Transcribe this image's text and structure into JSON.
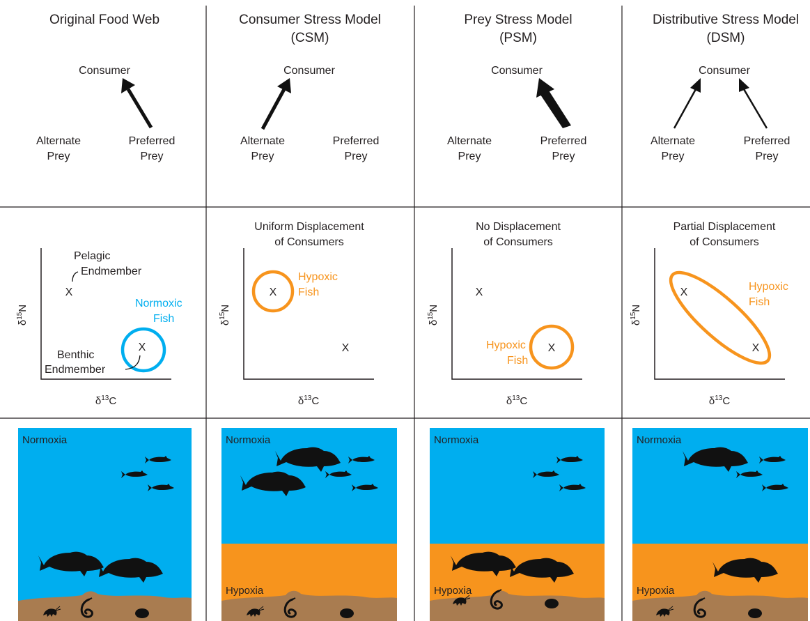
{
  "colors": {
    "text": "#231f20",
    "water": "#00aeef",
    "hypoxic_layer": "#f7941d",
    "sediment": "#a97c50",
    "normoxic_ring": "#00aeef",
    "hypoxic_ring": "#f7941d"
  },
  "columns": [
    {
      "title_line1": "Original Food Web",
      "title_line2": "",
      "web": {
        "consumer": "Consumer",
        "alternate_l1": "Alternate",
        "alternate_l2": "Prey",
        "preferred_l1": "Preferred",
        "preferred_l2": "Prey"
      },
      "isotope": {
        "subtitle_line1": "",
        "subtitle_line2": "",
        "x_label": "δ13C",
        "y_label": "δ15N",
        "pelagic_l1": "Pelagic",
        "pelagic_l2": "Endmember",
        "benthic_l1": "Benthic",
        "benthic_l2": "Endmember",
        "fish_l1": "Normoxic",
        "fish_l2": "Fish",
        "marker": "X"
      },
      "scene": {
        "normoxia": "Normoxia",
        "hypoxia": ""
      }
    },
    {
      "title_line1": "Consumer Stress Model",
      "title_line2": "(CSM)",
      "web": {
        "consumer": "Consumer",
        "alternate_l1": "Alternate",
        "alternate_l2": "Prey",
        "preferred_l1": "Preferred",
        "preferred_l2": "Prey"
      },
      "isotope": {
        "subtitle_line1": "Uniform Displacement",
        "subtitle_line2": "of Consumers",
        "x_label": "δ13C",
        "y_label": "δ15N",
        "fish_l1": "Hypoxic",
        "fish_l2": "Fish",
        "marker": "X"
      },
      "scene": {
        "normoxia": "Normoxia",
        "hypoxia": "Hypoxia"
      }
    },
    {
      "title_line1": "Prey Stress Model",
      "title_line2": "(PSM)",
      "web": {
        "consumer": "Consumer",
        "alternate_l1": "Alternate",
        "alternate_l2": "Prey",
        "preferred_l1": "Preferred",
        "preferred_l2": "Prey"
      },
      "isotope": {
        "subtitle_line1": "No Displacement",
        "subtitle_line2": "of Consumers",
        "x_label": "δ13C",
        "y_label": "δ15N",
        "fish_l1": "Hypoxic",
        "fish_l2": "Fish",
        "marker": "X"
      },
      "scene": {
        "normoxia": "Normoxia",
        "hypoxia": "Hypoxia"
      }
    },
    {
      "title_line1": "Distributive Stress Model",
      "title_line2": "(DSM)",
      "web": {
        "consumer": "Consumer",
        "alternate_l1": "Alternate",
        "alternate_l2": "Prey",
        "preferred_l1": "Preferred",
        "preferred_l2": "Prey"
      },
      "isotope": {
        "subtitle_line1": "Partial Displacement",
        "subtitle_line2": "of Consumers",
        "x_label": "δ13C",
        "y_label": "δ15N",
        "fish_l1": "Hypoxic",
        "fish_l2": "Fish",
        "marker": "X"
      },
      "scene": {
        "normoxia": "Normoxia",
        "hypoxia": "Hypoxia"
      }
    }
  ]
}
